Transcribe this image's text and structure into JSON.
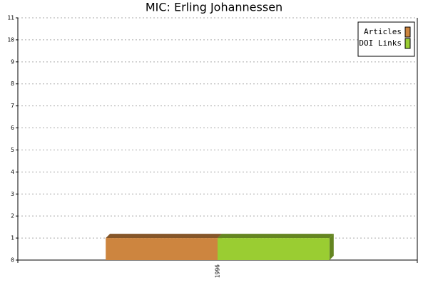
{
  "chart_data": {
    "type": "bar",
    "title": "MIC: Erling Johannessen",
    "categories": [
      "1996"
    ],
    "series": [
      {
        "name": "Articles",
        "color": "#cd853f",
        "values": [
          1
        ]
      },
      {
        "name": "DOI Links",
        "color": "#9acd32",
        "values": [
          1
        ]
      }
    ],
    "ylim": [
      0,
      11
    ],
    "yticks": [
      0,
      1,
      2,
      3,
      4,
      5,
      6,
      7,
      8,
      9,
      10,
      11
    ],
    "grid": true,
    "legend": "upper right"
  }
}
